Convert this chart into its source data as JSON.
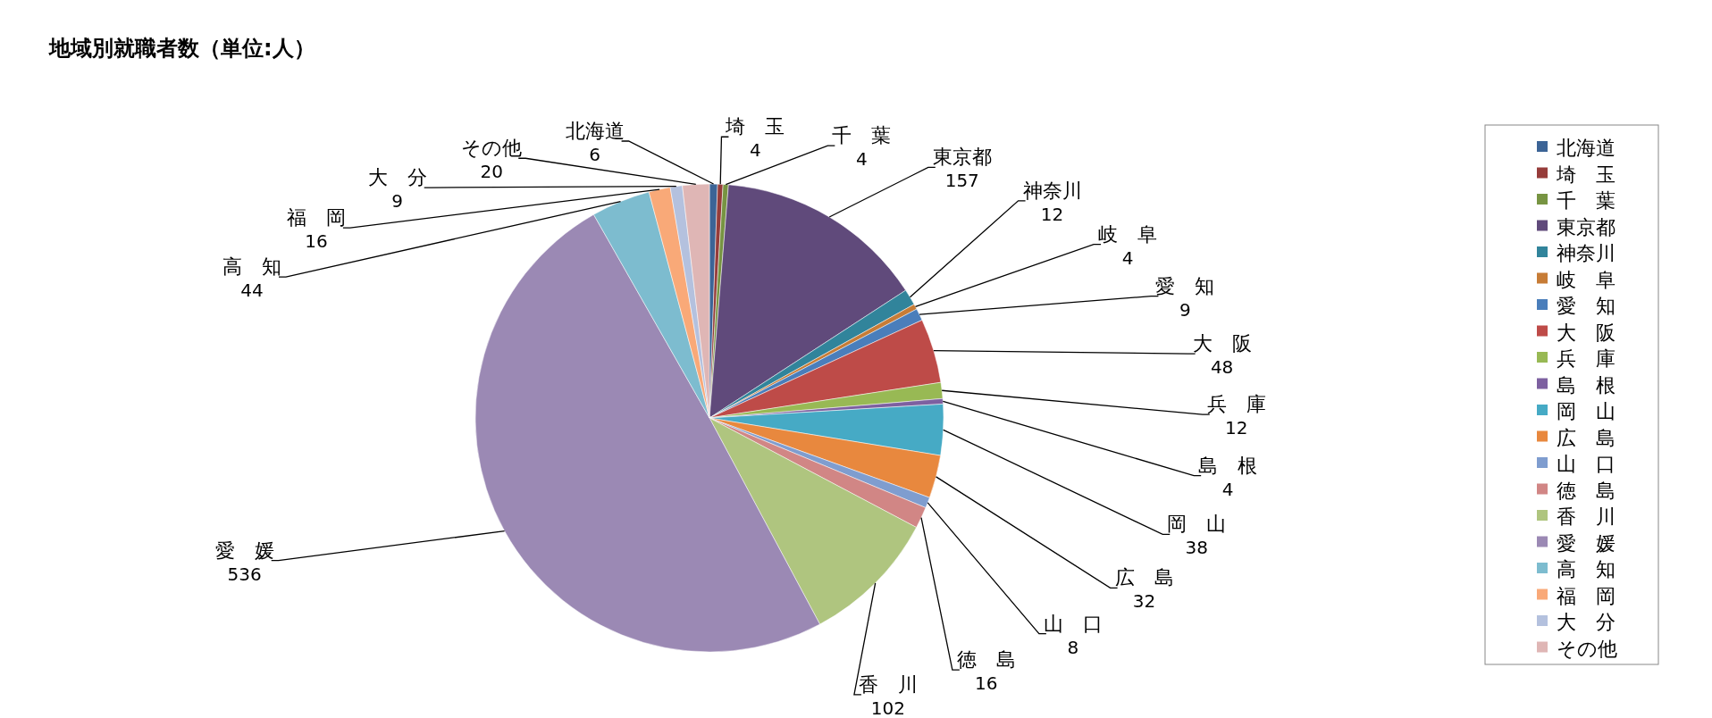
{
  "chart_data": {
    "type": "pie",
    "title": "地域別就職者数（単位:人）",
    "categories": [
      "北海道",
      "埼　玉",
      "千　葉",
      "東京都",
      "神奈川",
      "岐　阜",
      "愛　知",
      "大　阪",
      "兵　庫",
      "島　根",
      "岡　山",
      "広　島",
      "山　口",
      "徳　島",
      "香　川",
      "愛　媛",
      "高　知",
      "福　岡",
      "大　分",
      "その他"
    ],
    "values": [
      6,
      4,
      4,
      157,
      12,
      4,
      9,
      48,
      12,
      4,
      38,
      32,
      8,
      16,
      102,
      536,
      44,
      16,
      9,
      20
    ],
    "colors": [
      "#3c6496",
      "#963c3a",
      "#779442",
      "#604a7b",
      "#31849b",
      "#c77c36",
      "#4a7ebb",
      "#be4b48",
      "#98b954",
      "#7d60a0",
      "#46aac5",
      "#e8883e",
      "#7f9dcf",
      "#d18685",
      "#afc57f",
      "#9b89b4",
      "#7dbccf",
      "#f9a978",
      "#b4c1de",
      "#dfb6b5"
    ],
    "data_labels": true,
    "legend": "right"
  }
}
